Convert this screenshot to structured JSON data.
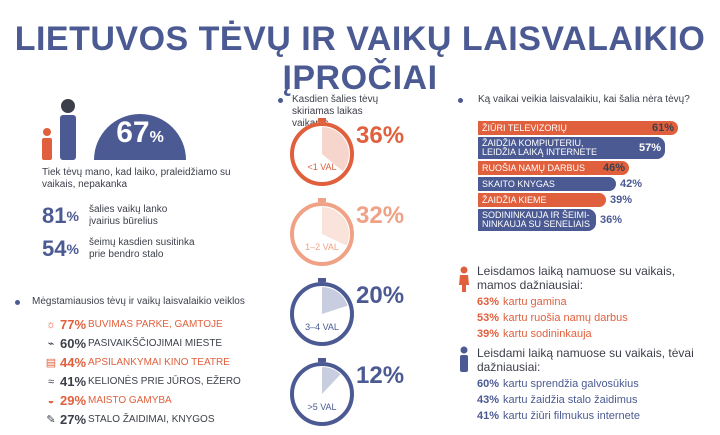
{
  "title": "LIETUVOS TĖVŲ IR VAIKŲ LAISVALAIKIO ĮPROČIAI",
  "colors": {
    "navy": "#4b5a92",
    "orange": "#e0603d",
    "dark": "#3c3f4a"
  },
  "left": {
    "headline": {
      "value": "67",
      "unit": "%",
      "text": "Tiek tėvų mano, kad laiko, praleidžiamo su vaikais, nepakanka"
    },
    "stats": [
      {
        "value": "81",
        "unit": "%",
        "text": "šalies vaikų lanko įvairius būrelius"
      },
      {
        "value": "54",
        "unit": "%",
        "text": "šeimų kasdien susitinka prie bendro stalo"
      }
    ],
    "activities_title": "Mėgstamiausios tėvų ir vaikų laisvalaikio veiklos",
    "activities": [
      {
        "icon": "sun-icon",
        "glyph": "☼",
        "pct": "77%",
        "label": "Buvimas parke, gamtoje",
        "color": "#e0603d"
      },
      {
        "icon": "shoe-icon",
        "glyph": "⌁",
        "pct": "60%",
        "label": "Pasivaikščiojimai mieste",
        "color": "#3c3f4a"
      },
      {
        "icon": "film-icon",
        "glyph": "▤",
        "pct": "44%",
        "label": "Apsilankymai kino teatre",
        "color": "#e0603d"
      },
      {
        "icon": "wave-icon",
        "glyph": "≈",
        "pct": "41%",
        "label": "Kelionės prie jūros, ežero",
        "color": "#3c3f4a"
      },
      {
        "icon": "cooking-icon",
        "glyph": "◒",
        "pct": "29%",
        "label": "Maisto gamyba",
        "color": "#e0603d"
      },
      {
        "icon": "wrench-icon",
        "glyph": "✎",
        "pct": "27%",
        "label": "Stalo žaidimai, knygos",
        "color": "#3c3f4a"
      }
    ]
  },
  "middle": {
    "title": "Kasdien šalies tėvų skiriamas laikas vaikams",
    "clocks": [
      {
        "label": "<1 VAL",
        "pct": "36%",
        "color": "#e0603d",
        "fill": "#f6d6cc"
      },
      {
        "label": "1–2 VAL",
        "pct": "32%",
        "color": "#f0a286",
        "fill": "#f9e3da"
      },
      {
        "label": "3–4 VAL",
        "pct": "20%",
        "color": "#4b5a92",
        "fill": "#c9cde0"
      },
      {
        "label": ">5 VAL",
        "pct": "12%",
        "color": "#4b5a92",
        "fill": "#c9cde0"
      }
    ]
  },
  "chart_data": {
    "type": "bar",
    "title": "Ką vaikai veikia laisvalaikiu, kai šalia nėra tėvų?",
    "categories": [
      "Žiūri televizorių",
      "Žaidžia kompiuteriu, leidžia laiką internete",
      "Ruošia namų darbus",
      "Skaito knygas",
      "Žaidžia kieme",
      "Sodininkauja ir šeimininkauja su seneliais"
    ],
    "category_lines": [
      [
        "ŽIŪRI TELEVIZORIŲ"
      ],
      [
        "ŽAIDŽIA KOMPIUTERIU,",
        "LEIDŽIA LAIKĄ INTERNETE"
      ],
      [
        "RUOŠIA NAMŲ DARBUS"
      ],
      [
        "SKAITO KNYGAS"
      ],
      [
        "ŽAIDŽIA KIEME"
      ],
      [
        "SODININKAUJA IR ŠEIMI-",
        "NINKAUJA SU SENELIAIS"
      ]
    ],
    "values": [
      61,
      57,
      46,
      42,
      39,
      36
    ],
    "labels": [
      "61%",
      "57%",
      "46%",
      "42%",
      "39%",
      "36%"
    ],
    "colors": [
      "#e0603d",
      "#4b5a92",
      "#e0603d",
      "#4b5a92",
      "#e0603d",
      "#4b5a92"
    ]
  },
  "right": {
    "moms": {
      "title": "Leisdamos laiką namuose su vaikais, mamos dažniausiai:",
      "items": [
        {
          "pct": "63%",
          "text": "kartu gamina"
        },
        {
          "pct": "53%",
          "text": "kartu ruošia namų darbus"
        },
        {
          "pct": "39%",
          "text": "kartu sodininkauja"
        }
      ]
    },
    "dads": {
      "title": "Leisdami laiką namuose su vaikais, tėvai dažniausiai:",
      "items": [
        {
          "pct": "60%",
          "text": "kartu sprendžia galvosūkius"
        },
        {
          "pct": "43%",
          "text": "kartu žaidžia stalo žaidimus"
        },
        {
          "pct": "41%",
          "text": "kartu žiūri filmukus internete"
        }
      ]
    }
  }
}
